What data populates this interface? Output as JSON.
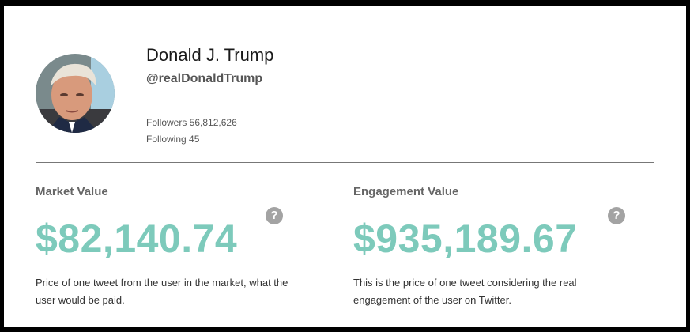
{
  "profile": {
    "name": "Donald J. Trump",
    "handle": "@realDonaldTrump",
    "followers_text": "Followers 56,812,626",
    "following_text": "Following 45",
    "avatar_icon": "profile-photo"
  },
  "market": {
    "title": "Market Value",
    "value": "$82,140.74",
    "description": "Price of one tweet from the user in the market, what the user would be paid.",
    "help_glyph": "?"
  },
  "engagement": {
    "title": "Engagement Value",
    "value": "$935,189.67",
    "description": "This is the price of one tweet considering the real engagement of the user on Twitter.",
    "help_glyph": "?"
  },
  "colors": {
    "accent": "#7dcabb",
    "help_icon": "#a3a3a3",
    "divider": "#777777"
  }
}
